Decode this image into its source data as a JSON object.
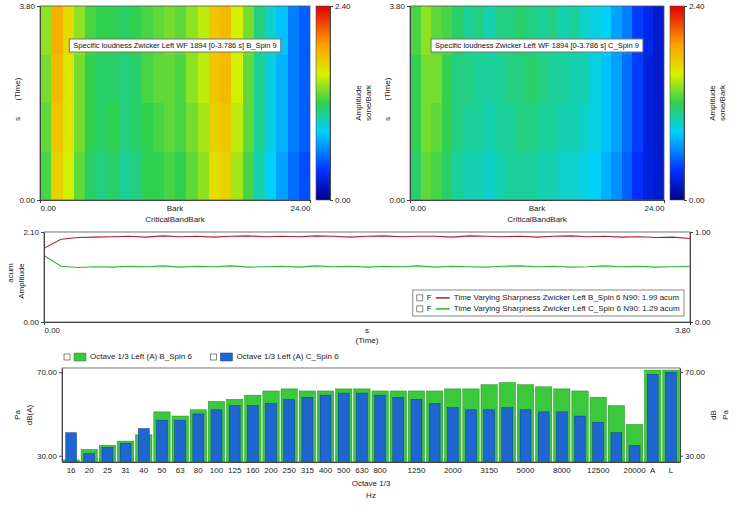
{
  "chart_data": [
    {
      "type": "heatmap",
      "title": "Specific loudness Zwicker Left WF 1894 [0-3.786 s] B_Spin 9",
      "x_label": "CriticalBandBark",
      "x_unit": "Bark",
      "y_label": "(Time)",
      "y_unit": "s",
      "xlim": [
        0,
        24
      ],
      "xticks": [
        {
          "value": 0,
          "label": "0.00"
        },
        {
          "value": 24,
          "label": "24.00"
        }
      ],
      "ylim": [
        0,
        3.8
      ],
      "yticks": [
        {
          "value": 0,
          "label": "0.00"
        },
        {
          "value": 3.8,
          "label": "3.80"
        }
      ],
      "x_edges": [
        0,
        1,
        2,
        3,
        4,
        5,
        6,
        7,
        8,
        9,
        10,
        11,
        12,
        13,
        14,
        15,
        16,
        17,
        18,
        19,
        20,
        21,
        22,
        23,
        24
      ],
      "y_edges": [
        0,
        0.95,
        1.9,
        2.85,
        3.8
      ],
      "cells": [
        [
          1.25,
          1.7,
          1.55,
          1.3,
          1.15,
          1.1,
          1.15,
          1.05,
          1.1,
          1.2,
          1.2,
          1.25,
          1.2,
          1.3,
          1.4,
          1.65,
          1.7,
          1.45,
          1.25,
          1.0,
          0.85,
          0.7,
          0.55,
          0.45
        ],
        [
          1.3,
          1.75,
          1.6,
          1.35,
          1.2,
          1.15,
          1.2,
          1.1,
          1.15,
          1.2,
          1.25,
          1.3,
          1.25,
          1.35,
          1.45,
          1.7,
          1.75,
          1.5,
          1.3,
          1.05,
          0.9,
          0.75,
          0.6,
          0.5
        ],
        [
          1.35,
          1.8,
          1.6,
          1.35,
          1.2,
          1.15,
          1.15,
          1.1,
          1.15,
          1.25,
          1.3,
          1.3,
          1.25,
          1.4,
          1.5,
          1.75,
          1.8,
          1.55,
          1.3,
          1.05,
          0.9,
          0.75,
          0.6,
          0.5
        ],
        [
          1.4,
          1.85,
          1.65,
          1.4,
          1.25,
          1.2,
          1.2,
          1.15,
          1.2,
          1.25,
          1.3,
          1.35,
          1.3,
          1.4,
          1.5,
          1.75,
          1.8,
          1.55,
          1.35,
          1.1,
          0.95,
          0.8,
          0.6,
          0.5
        ]
      ],
      "colorbar": {
        "range": [
          0,
          2.4
        ],
        "ticks": [
          {
            "value": 0,
            "label": "0.00"
          },
          {
            "value": 2.4,
            "label": "2.40"
          }
        ],
        "label": "Amplitude",
        "unit": "sone/Bark"
      }
    },
    {
      "type": "heatmap",
      "title": "Specific loudness Zwicker Left WF 1894 [0-3.786 s] C_Spin 9",
      "x_label": "CriticalBandBark",
      "x_unit": "Bark",
      "y_label": "(Time)",
      "y_unit": "s",
      "xlim": [
        0,
        24
      ],
      "xticks": [
        {
          "value": 0,
          "label": "0.00"
        },
        {
          "value": 24,
          "label": "24.00"
        }
      ],
      "ylim": [
        0,
        3.8
      ],
      "yticks": [
        {
          "value": 0,
          "label": "0.00"
        },
        {
          "value": 3.8,
          "label": "3.80"
        }
      ],
      "x_edges": [
        0,
        1,
        2,
        3,
        4,
        5,
        6,
        7,
        8,
        9,
        10,
        11,
        12,
        13,
        14,
        15,
        16,
        17,
        18,
        19,
        20,
        21,
        22,
        23,
        24
      ],
      "y_edges": [
        0,
        0.95,
        1.9,
        2.85,
        3.8
      ],
      "cells": [
        [
          1.15,
          1.3,
          1.25,
          1.15,
          1.05,
          1.0,
          1.0,
          0.95,
          1.0,
          1.05,
          1.05,
          1.05,
          1.0,
          1.0,
          0.95,
          0.95,
          0.9,
          0.85,
          0.75,
          0.65,
          0.5,
          0.35,
          0.25,
          0.2
        ],
        [
          1.2,
          1.35,
          1.3,
          1.2,
          1.1,
          1.05,
          1.05,
          1.0,
          1.05,
          1.05,
          1.1,
          1.1,
          1.05,
          1.05,
          1.0,
          1.0,
          0.95,
          0.9,
          0.8,
          0.7,
          0.55,
          0.4,
          0.25,
          0.2
        ],
        [
          1.2,
          1.35,
          1.35,
          1.2,
          1.1,
          1.1,
          1.05,
          1.05,
          1.05,
          1.1,
          1.1,
          1.15,
          1.1,
          1.05,
          1.05,
          1.0,
          1.0,
          0.9,
          0.8,
          0.7,
          0.55,
          0.4,
          0.25,
          0.2
        ],
        [
          1.25,
          1.4,
          1.3,
          1.25,
          1.15,
          1.05,
          1.1,
          1.0,
          1.1,
          1.1,
          1.15,
          1.1,
          1.05,
          1.1,
          1.0,
          1.05,
          0.95,
          0.9,
          0.85,
          0.7,
          0.6,
          0.4,
          0.3,
          0.2
        ]
      ],
      "colorbar": {
        "range": [
          0,
          2.4
        ],
        "ticks": [
          {
            "value": 0,
            "label": "0.00"
          },
          {
            "value": 2.4,
            "label": "2.40"
          }
        ],
        "label": "Amplitude",
        "unit": "sone/Bark"
      }
    },
    {
      "type": "line",
      "x_label": "(Time)",
      "x_unit": "s",
      "y_label": "Amplitude",
      "y_unit": "acum",
      "x": [
        0,
        0.1,
        0.2,
        0.3,
        0.4,
        0.5,
        0.6,
        0.7,
        0.8,
        0.9,
        1.0,
        1.1,
        1.2,
        1.3,
        1.4,
        1.5,
        1.6,
        1.7,
        1.8,
        1.9,
        2.0,
        2.1,
        2.2,
        2.3,
        2.4,
        2.5,
        2.6,
        2.7,
        2.8,
        2.9,
        3.0,
        3.1,
        3.2,
        3.3,
        3.4,
        3.5,
        3.6,
        3.7,
        3.8
      ],
      "xlim": [
        0,
        3.8
      ],
      "xticks": [
        {
          "value": 0,
          "label": "0.00"
        },
        {
          "value": 3.8,
          "label": "3.80"
        }
      ],
      "ylim": [
        0,
        2.1
      ],
      "yticks": [
        {
          "value": 0,
          "label": "0.00"
        },
        {
          "value": 2.1,
          "label": "2.10"
        }
      ],
      "y2lim": [
        0,
        1
      ],
      "y2ticks": [
        {
          "value": 0,
          "label": "0.00"
        },
        {
          "value": 1,
          "label": "1.00"
        }
      ],
      "legend": "lower right",
      "series": [
        {
          "name": "Time Varying Sharpness Zwicker Left B_Spin 6 N90: 1.99 acum",
          "checkbox_label": "F",
          "color": "#b3202a",
          "values": [
            1.72,
            1.93,
            1.97,
            1.98,
            1.99,
            2.0,
            1.98,
            2.01,
            1.99,
            2.0,
            1.98,
            2.0,
            2.01,
            1.99,
            2.0,
            1.99,
            2.01,
            2.0,
            1.98,
            2.0,
            2.01,
            1.99,
            2.0,
            2.0,
            1.98,
            2.01,
            2.0,
            1.99,
            2.0,
            1.98,
            2.0,
            2.01,
            1.99,
            2.0,
            1.98,
            1.99,
            1.97,
            1.98,
            1.95
          ]
        },
        {
          "name": "Time Varying Sharpness Zwicker Left C_Spin 6 N90: 1.29 acum",
          "checkbox_label": "F",
          "color": "#2db82d",
          "values": [
            1.55,
            1.3,
            1.27,
            1.29,
            1.28,
            1.3,
            1.29,
            1.31,
            1.28,
            1.3,
            1.29,
            1.31,
            1.28,
            1.29,
            1.3,
            1.28,
            1.31,
            1.29,
            1.3,
            1.28,
            1.3,
            1.29,
            1.31,
            1.28,
            1.3,
            1.29,
            1.28,
            1.3,
            1.31,
            1.29,
            1.3,
            1.28,
            1.29,
            1.31,
            1.29,
            1.3,
            1.28,
            1.29,
            1.3
          ]
        }
      ]
    },
    {
      "type": "bar",
      "x_label": "Octave 1/3",
      "x_unit": "Hz",
      "y_label": "dB(A)",
      "y_unit": "Pa",
      "y2_label": "dB",
      "y2_unit": "Pa",
      "categories": [
        "16",
        "20",
        "25",
        "31",
        "40",
        "50",
        "63",
        "80",
        "100",
        "125",
        "160",
        "200",
        "250",
        "315",
        "400",
        "500",
        "630",
        "800",
        null,
        "1250",
        null,
        "2000",
        null,
        "3150",
        null,
        "5000",
        null,
        "8000",
        null,
        "12500",
        null,
        "20000",
        "A",
        "L"
      ],
      "ylim": [
        27,
        72
      ],
      "yticks": [
        {
          "value": 30,
          "label": "30.00"
        },
        {
          "value": 70,
          "label": "70.00"
        }
      ],
      "y2lim": [
        27,
        72
      ],
      "y2ticks": [
        {
          "value": 30,
          "label": "30.00"
        },
        {
          "value": 70,
          "label": "70.00"
        }
      ],
      "legend": "top",
      "series": [
        {
          "name": "Octave 1/3 Left (A) B_Spin 6",
          "color": "#3cc83c",
          "values": [
            28,
            33,
            35,
            37,
            40,
            51,
            49,
            52,
            56,
            57,
            59,
            61,
            62,
            61,
            61,
            62,
            62,
            61,
            61,
            61,
            61,
            62,
            62,
            64,
            65,
            64,
            63,
            62,
            61,
            58,
            54,
            45,
            71,
            71
          ]
        },
        {
          "name": "Octave 1/3 Left (A) C_Spin 6",
          "color": "#1f66d1",
          "values": [
            41,
            31,
            34,
            36,
            43,
            47,
            47,
            50,
            52,
            54,
            54,
            55,
            57,
            58,
            59,
            60,
            60,
            59,
            58,
            57,
            55,
            53,
            52,
            52,
            53,
            52,
            51,
            51,
            49,
            46,
            41,
            35,
            69,
            70
          ]
        }
      ]
    }
  ]
}
